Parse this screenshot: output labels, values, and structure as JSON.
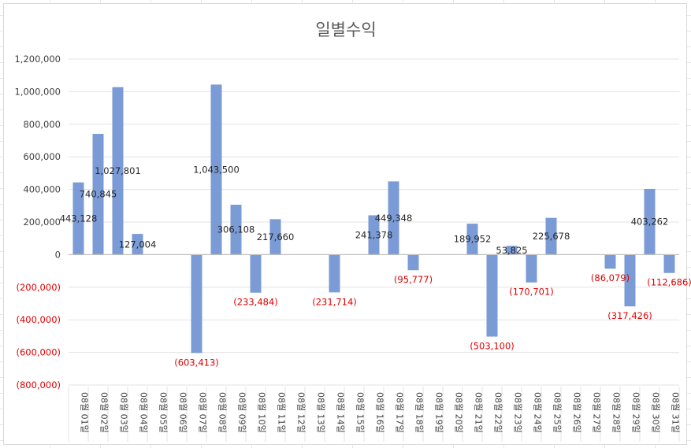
{
  "chart_data": {
    "type": "bar",
    "title": "일별수익",
    "xlabel": "",
    "ylabel": "",
    "ylim": [
      -800000,
      1200000
    ],
    "ytick_step": 200000,
    "yticks": [
      {
        "value": 1200000,
        "label": "1,200,000"
      },
      {
        "value": 1000000,
        "label": "1,000,000"
      },
      {
        "value": 800000,
        "label": "800,000"
      },
      {
        "value": 600000,
        "label": "600,000"
      },
      {
        "value": 400000,
        "label": "400,000"
      },
      {
        "value": 200000,
        "label": "200,000"
      },
      {
        "value": 0,
        "label": "0"
      },
      {
        "value": -200000,
        "label": "(200,000)"
      },
      {
        "value": -400000,
        "label": "(400,000)"
      },
      {
        "value": -600000,
        "label": "(600,000)"
      },
      {
        "value": -800000,
        "label": "(800,000)"
      }
    ],
    "grid": true,
    "legend": "none",
    "bar_color": "#7b9bd6",
    "positive_label_color": "#262626",
    "negative_label_color": "#e00000",
    "categories": [
      "08월 01일",
      "08월 02일",
      "08월 03일",
      "08월 04일",
      "08월 05일",
      "08월 06일",
      "08월 07일",
      "08월 08일",
      "08월 09일",
      "08월 10일",
      "08월 11일",
      "08월 12일",
      "08월 13일",
      "08월 14일",
      "08월 15일",
      "08월 16일",
      "08월 17일",
      "08월 18일",
      "08월 19일",
      "08월 20일",
      "08월 21일",
      "08월 22일",
      "08월 23일",
      "08월 24일",
      "08월 25일",
      "08월 26일",
      "08월 27일",
      "08월 28일",
      "08월 29일",
      "08월 30일",
      "08월 31일"
    ],
    "values": [
      443128,
      740845,
      1027801,
      127004,
      null,
      null,
      -603413,
      1043500,
      306108,
      -233484,
      217660,
      null,
      null,
      -231714,
      null,
      241378,
      449348,
      -95777,
      null,
      null,
      189952,
      -503100,
      53825,
      -170701,
      225678,
      null,
      null,
      -86079,
      -317426,
      403262,
      -112686
    ],
    "data_labels": [
      "443,128",
      "740,845",
      "1,027,801",
      "127,004",
      "",
      "",
      "(603,413)",
      "1,043,500",
      "306,108",
      "(233,484)",
      "217,660",
      "",
      "",
      "(231,714)",
      "",
      "241,378",
      "449,348",
      "(95,777)",
      "",
      "",
      "189,952",
      "(503,100)",
      "53,825",
      "(170,701)",
      "225,678",
      "",
      "",
      "(86,079)",
      "(317,426)",
      "403,262",
      "(112,686)"
    ]
  }
}
